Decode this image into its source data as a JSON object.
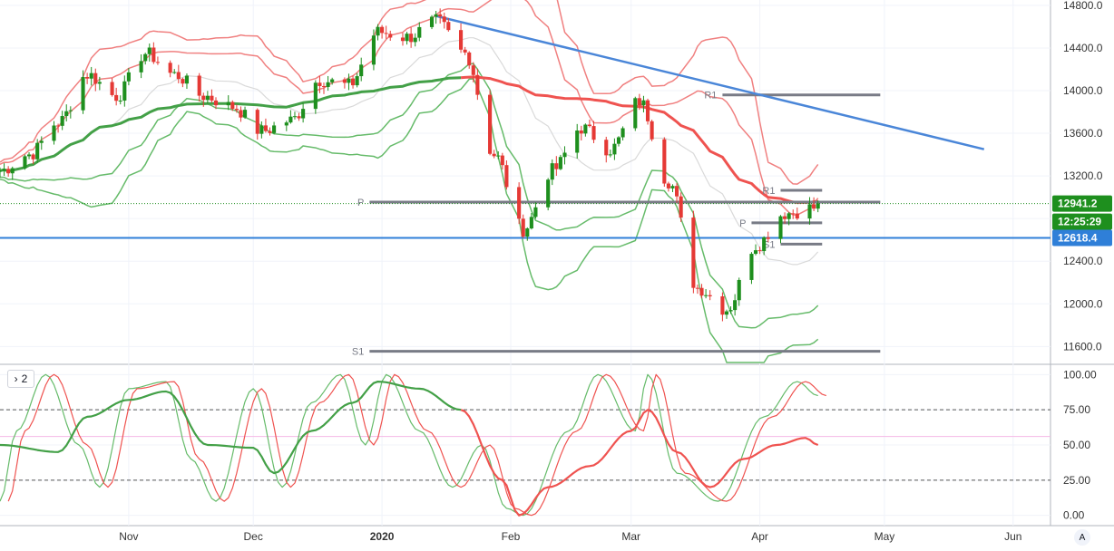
{
  "chart_data": [
    {
      "type": "candlestick",
      "title": "",
      "ylim": [
        11450,
        14850
      ],
      "yticks": [
        14800,
        14400,
        14000,
        13600,
        13200,
        12800,
        12400,
        12000,
        11600
      ],
      "ytick_labels": [
        "14800.0",
        "14400.0",
        "14000.0",
        "13600.0",
        "13200.0",
        "12800.0",
        "12400.0",
        "12000.0",
        "11600.0"
      ],
      "x_labels": [
        {
          "label": "Nov",
          "date": "2019-11-01"
        },
        {
          "label": "Dec",
          "date": "2019-12-01"
        },
        {
          "label": "2020",
          "date": "2020-01-01"
        },
        {
          "label": "Feb",
          "date": "2020-02-01"
        },
        {
          "label": "Mar",
          "date": "2020-03-01"
        },
        {
          "label": "Apr",
          "date": "2020-04-01"
        },
        {
          "label": "May",
          "date": "2020-05-01"
        },
        {
          "label": "Jun",
          "date": "2020-06-01"
        }
      ],
      "price_badges": [
        {
          "name": "last-price",
          "label": "12941.2",
          "value": 12941.2,
          "color": "#1e8f1e"
        },
        {
          "name": "countdown",
          "label": "12:25:29",
          "value": 12860,
          "color": "#1e8f1e"
        },
        {
          "name": "support-line",
          "label": "12618.4",
          "value": 12618.4,
          "color": "#2f7fd8"
        }
      ],
      "pivot_levels": [
        {
          "label": "P",
          "value": 12955,
          "from": "2019-12-29",
          "to": "2020-04-30"
        },
        {
          "label": "S1",
          "value": 11555,
          "from": "2019-12-29",
          "to": "2020-04-30"
        },
        {
          "label": "R1",
          "value": 13960,
          "from": "2020-03-23",
          "to": "2020-04-30"
        },
        {
          "label": "R1",
          "value": 13065,
          "from": "2020-04-06",
          "to": "2020-04-16"
        },
        {
          "label": "P",
          "value": 12760,
          "from": "2020-03-30",
          "to": "2020-04-16"
        },
        {
          "label": "S1",
          "value": 12560,
          "from": "2020-04-06",
          "to": "2020-04-16"
        }
      ],
      "trendline": {
        "from": {
          "date": "2020-01-14",
          "value": 14700
        },
        "to": {
          "date": "2020-05-25",
          "value": 13450
        },
        "color": "#4a86d8"
      },
      "horizontal_line": {
        "value": 12618.4,
        "color": "#2f7fd8"
      },
      "dotted_line": {
        "value": 12941.2,
        "color": "#1e8f1e"
      },
      "key_points": [
        [
          "2019-10-01",
          13250
        ],
        [
          "2019-10-08",
          13400
        ],
        [
          "2019-10-15",
          13700
        ],
        [
          "2019-10-22",
          14150
        ],
        [
          "2019-10-29",
          13950
        ],
        [
          "2019-11-05",
          14350
        ],
        [
          "2019-11-12",
          14150
        ],
        [
          "2019-11-19",
          13950
        ],
        [
          "2019-11-26",
          13850
        ],
        [
          "2019-12-03",
          13620
        ],
        [
          "2019-12-10",
          13720
        ],
        [
          "2019-12-17",
          14100
        ],
        [
          "2019-12-24",
          14050
        ],
        [
          "2019-12-31",
          14550
        ],
        [
          "2020-01-07",
          14500
        ],
        [
          "2020-01-14",
          14650
        ],
        [
          "2020-01-21",
          14350
        ],
        [
          "2020-01-28",
          13400
        ],
        [
          "2020-02-04",
          12700
        ],
        [
          "2020-02-11",
          13250
        ],
        [
          "2020-02-18",
          13650
        ],
        [
          "2020-02-25",
          13450
        ],
        [
          "2020-03-03",
          13900
        ],
        [
          "2020-03-10",
          13150
        ],
        [
          "2020-03-17",
          12150
        ],
        [
          "2020-03-24",
          11950
        ],
        [
          "2020-03-31",
          12550
        ],
        [
          "2020-04-07",
          12850
        ],
        [
          "2020-04-14",
          12900
        ],
        [
          "2020-04-15",
          12941.2
        ]
      ],
      "indicators": {
        "bollinger_color": "#f08080",
        "keltner_color": "#66bb6a",
        "ma_red_color": "#ef5350",
        "ma_green_color": "#43a047",
        "up_candle_color": "#1e8f1e",
        "down_candle_color": "#e53935"
      }
    },
    {
      "type": "line",
      "title": "",
      "ylim": [
        -6,
        106
      ],
      "yticks": [
        100,
        75,
        50,
        25,
        0
      ],
      "ytick_labels": [
        "100.00",
        "75.00",
        "50.00",
        "25.00",
        "0.00"
      ],
      "dashed_levels": [
        75,
        25
      ],
      "pink_level": 56,
      "pane_toggle_label": "2",
      "series": [
        {
          "color": "#43a047",
          "values_key": "rsi_green"
        },
        {
          "color": "#ef5350",
          "values_key": "rsi_red"
        },
        {
          "color": "#66bb6a",
          "values_key": "stoch_k"
        },
        {
          "color": "#ef5350",
          "values_key": "stoch_d"
        }
      ],
      "rsi_points": [
        [
          "2019-10-01",
          50
        ],
        [
          "2019-10-15",
          45
        ],
        [
          "2019-10-22",
          70
        ],
        [
          "2019-11-01",
          82
        ],
        [
          "2019-11-10",
          88
        ],
        [
          "2019-11-20",
          50
        ],
        [
          "2019-12-01",
          48
        ],
        [
          "2019-12-06",
          30
        ],
        [
          "2019-12-15",
          60
        ],
        [
          "2019-12-25",
          80
        ],
        [
          "2019-12-31",
          95
        ],
        [
          "2020-01-10",
          90
        ],
        [
          "2020-01-20",
          75
        ],
        [
          "2020-01-30",
          25
        ],
        [
          "2020-02-03",
          0
        ],
        [
          "2020-02-10",
          20
        ],
        [
          "2020-02-20",
          35
        ],
        [
          "2020-03-01",
          60
        ],
        [
          "2020-03-05",
          75
        ],
        [
          "2020-03-12",
          45
        ],
        [
          "2020-03-20",
          20
        ],
        [
          "2020-03-28",
          40
        ],
        [
          "2020-04-05",
          50
        ],
        [
          "2020-04-12",
          55
        ],
        [
          "2020-04-15",
          50
        ]
      ],
      "stoch_points": [
        [
          "2019-10-01",
          10
        ],
        [
          "2019-10-05",
          60
        ],
        [
          "2019-10-12",
          100
        ],
        [
          "2019-10-20",
          50
        ],
        [
          "2019-10-25",
          20
        ],
        [
          "2019-11-01",
          90
        ],
        [
          "2019-11-10",
          95
        ],
        [
          "2019-11-16",
          40
        ],
        [
          "2019-11-22",
          10
        ],
        [
          "2019-12-01",
          90
        ],
        [
          "2019-12-08",
          20
        ],
        [
          "2019-12-15",
          80
        ],
        [
          "2019-12-22",
          100
        ],
        [
          "2019-12-28",
          50
        ],
        [
          "2020-01-02",
          100
        ],
        [
          "2020-01-10",
          60
        ],
        [
          "2020-01-18",
          20
        ],
        [
          "2020-01-25",
          50
        ],
        [
          "2020-01-31",
          5
        ],
        [
          "2020-02-04",
          0
        ],
        [
          "2020-02-15",
          60
        ],
        [
          "2020-02-22",
          100
        ],
        [
          "2020-03-02",
          60
        ],
        [
          "2020-03-05",
          100
        ],
        [
          "2020-03-12",
          30
        ],
        [
          "2020-03-22",
          10
        ],
        [
          "2020-04-02",
          70
        ],
        [
          "2020-04-10",
          95
        ],
        [
          "2020-04-15",
          85
        ]
      ]
    }
  ],
  "pane_toggle": {
    "label": "2"
  },
  "auto_scale": {
    "label": "A"
  }
}
